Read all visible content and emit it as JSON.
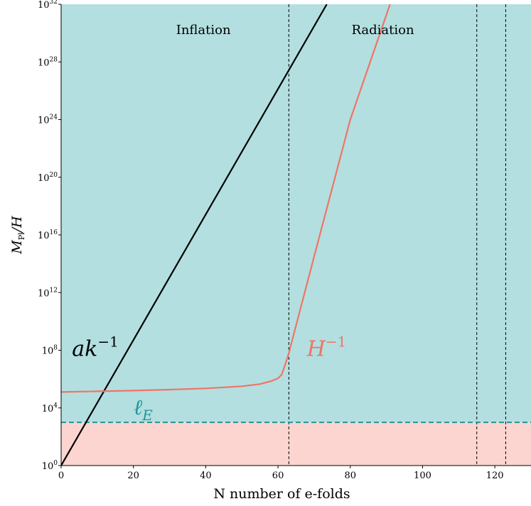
{
  "chart_data": {
    "type": "line",
    "title": "",
    "xlabel": "N number of e-folds",
    "ylabel": "M_Pl / H",
    "ylabel_main": "M",
    "ylabel_sub": "Pl",
    "ylabel_tail": "/H",
    "xlim": [
      0,
      130
    ],
    "ylim_log10": [
      0,
      32
    ],
    "y_scale": "log",
    "grid": false,
    "x_ticks": [
      0,
      20,
      40,
      60,
      80,
      100,
      120
    ],
    "y_ticks": [
      {
        "exp": 0,
        "label": "10",
        "sup": "0"
      },
      {
        "exp": 4,
        "label": "10",
        "sup": "4"
      },
      {
        "exp": 8,
        "label": "10",
        "sup": "8"
      },
      {
        "exp": 12,
        "label": "10",
        "sup": "12"
      },
      {
        "exp": 16,
        "label": "10",
        "sup": "16"
      },
      {
        "exp": 20,
        "label": "10",
        "sup": "20"
      },
      {
        "exp": 24,
        "label": "10",
        "sup": "24"
      },
      {
        "exp": 28,
        "label": "10",
        "sup": "28"
      },
      {
        "exp": 32,
        "label": "10",
        "sup": "32"
      }
    ],
    "vertical_lines": [
      63,
      115,
      123
    ],
    "regions": [
      {
        "name": "Inflation",
        "x_range": [
          0,
          63
        ]
      },
      {
        "name": "Radiation",
        "x_range": [
          63,
          115
        ]
      }
    ],
    "background_colors": {
      "upper": "#b3dfe0",
      "lower": "#fdd5d0"
    },
    "ell_E_log10": 3,
    "series": [
      {
        "name": "ak^{-1}",
        "label_main": "ak",
        "label_sup": "−1",
        "color": "#000000",
        "x": [
          0,
          73.5
        ],
        "y_log10": [
          0,
          32
        ]
      },
      {
        "name": "H^{-1}",
        "label_main": "H",
        "label_sup": "−1",
        "color": "#f07467",
        "x": [
          0,
          10,
          20,
          30,
          40,
          50,
          55,
          58,
          60,
          61,
          62,
          63,
          70,
          80,
          91
        ],
        "y_log10": [
          5.1,
          5.15,
          5.2,
          5.27,
          5.35,
          5.5,
          5.65,
          5.85,
          6.05,
          6.3,
          7.0,
          7.8,
          14.5,
          24.0,
          32.0
        ]
      },
      {
        "name": "ℓ_E",
        "label_main": "ℓ",
        "label_sub": "E",
        "color": "#21969a",
        "style": "dashed",
        "x": [
          0,
          130
        ],
        "y_log10": [
          3,
          3
        ]
      }
    ]
  }
}
